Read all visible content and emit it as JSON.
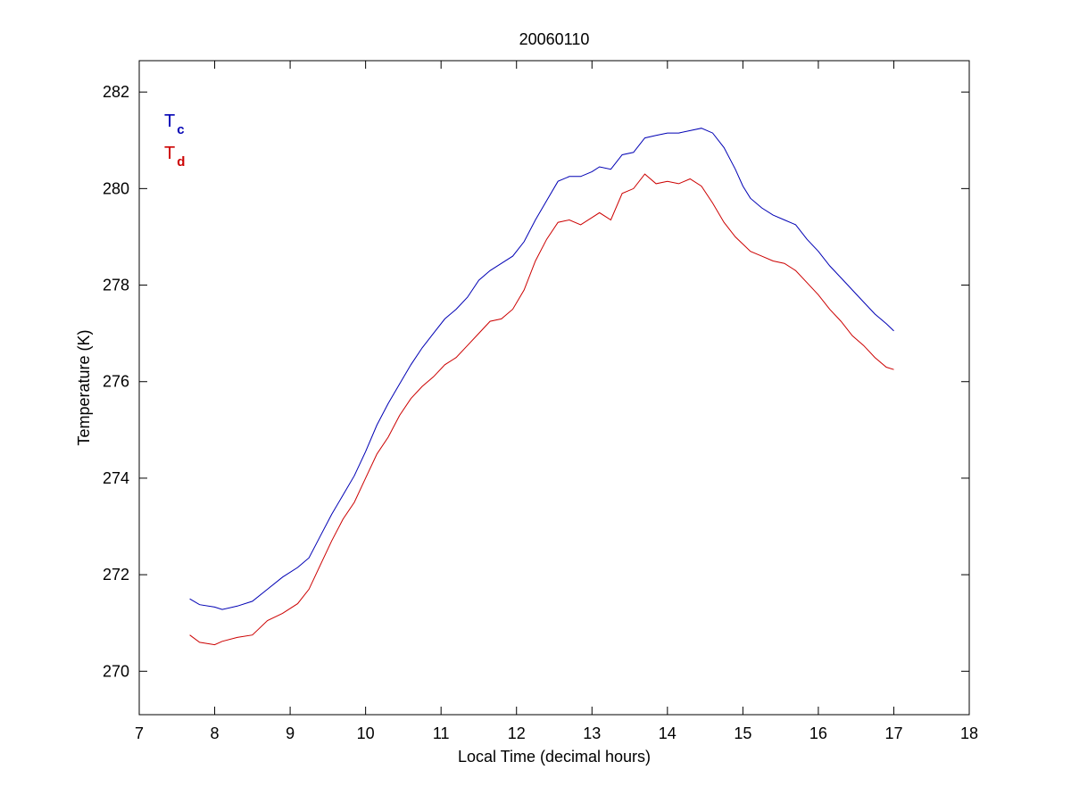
{
  "chart_data": {
    "type": "line",
    "title": "20060110",
    "xlabel": "Local Time (decimal hours)",
    "ylabel": "Temperature (K)",
    "xlim": [
      7,
      18
    ],
    "ylim": [
      269.1,
      282.65
    ],
    "xticks": [
      7,
      8,
      9,
      10,
      11,
      12,
      13,
      14,
      15,
      16,
      17,
      18
    ],
    "yticks": [
      270,
      272,
      274,
      276,
      278,
      280,
      282
    ],
    "grid": false,
    "legend_position": "top-left",
    "series": [
      {
        "name": "T",
        "subscript": "c",
        "color": "#0000b4",
        "x": [
          7.67,
          7.8,
          8.0,
          8.1,
          8.3,
          8.5,
          8.7,
          8.9,
          9.1,
          9.25,
          9.4,
          9.55,
          9.7,
          9.85,
          10.0,
          10.15,
          10.3,
          10.45,
          10.6,
          10.75,
          10.9,
          11.05,
          11.2,
          11.35,
          11.5,
          11.65,
          11.8,
          11.95,
          12.1,
          12.25,
          12.4,
          12.55,
          12.7,
          12.85,
          13.0,
          13.1,
          13.25,
          13.4,
          13.55,
          13.7,
          13.85,
          14.0,
          14.15,
          14.3,
          14.45,
          14.6,
          14.75,
          14.9,
          15.0,
          15.1,
          15.25,
          15.4,
          15.55,
          15.7,
          15.85,
          16.0,
          16.15,
          16.3,
          16.45,
          16.6,
          16.75,
          16.9,
          17.0
        ],
        "y": [
          271.5,
          271.38,
          271.33,
          271.28,
          271.35,
          271.45,
          271.7,
          271.95,
          272.15,
          272.35,
          272.8,
          273.25,
          273.65,
          274.05,
          274.55,
          275.1,
          275.55,
          275.95,
          276.35,
          276.7,
          277.0,
          277.3,
          277.5,
          277.75,
          278.1,
          278.3,
          278.45,
          278.6,
          278.9,
          279.35,
          279.75,
          280.15,
          280.25,
          280.25,
          280.35,
          280.45,
          280.4,
          280.7,
          280.75,
          281.05,
          281.1,
          281.15,
          281.15,
          281.2,
          281.25,
          281.15,
          280.85,
          280.4,
          280.05,
          279.8,
          279.6,
          279.45,
          279.35,
          279.25,
          278.95,
          278.7,
          278.4,
          278.15,
          277.9,
          277.65,
          277.4,
          277.2,
          277.05
        ]
      },
      {
        "name": "T",
        "subscript": "d",
        "color": "#cc0000",
        "x": [
          7.67,
          7.8,
          8.0,
          8.1,
          8.3,
          8.5,
          8.7,
          8.9,
          9.1,
          9.25,
          9.4,
          9.55,
          9.7,
          9.85,
          10.0,
          10.15,
          10.3,
          10.45,
          10.6,
          10.75,
          10.9,
          11.05,
          11.2,
          11.35,
          11.5,
          11.65,
          11.8,
          11.95,
          12.1,
          12.25,
          12.4,
          12.55,
          12.7,
          12.85,
          13.0,
          13.1,
          13.25,
          13.4,
          13.55,
          13.7,
          13.85,
          14.0,
          14.15,
          14.3,
          14.45,
          14.6,
          14.75,
          14.9,
          15.0,
          15.1,
          15.25,
          15.4,
          15.55,
          15.7,
          15.85,
          16.0,
          16.15,
          16.3,
          16.45,
          16.6,
          16.75,
          16.9,
          17.0
        ],
        "y": [
          270.75,
          270.6,
          270.55,
          270.62,
          270.7,
          270.75,
          271.05,
          271.2,
          271.4,
          271.7,
          272.2,
          272.7,
          273.15,
          273.5,
          274.0,
          274.5,
          274.85,
          275.3,
          275.65,
          275.9,
          276.1,
          276.35,
          276.5,
          276.75,
          277.0,
          277.25,
          277.3,
          277.5,
          277.9,
          278.5,
          278.95,
          279.3,
          279.35,
          279.25,
          279.4,
          279.5,
          279.35,
          279.9,
          280.0,
          280.3,
          280.1,
          280.15,
          280.1,
          280.2,
          280.05,
          279.7,
          279.3,
          279.0,
          278.85,
          278.7,
          278.6,
          278.5,
          278.45,
          278.3,
          278.05,
          277.8,
          277.5,
          277.25,
          276.95,
          276.75,
          276.5,
          276.3,
          276.25
        ]
      }
    ]
  }
}
